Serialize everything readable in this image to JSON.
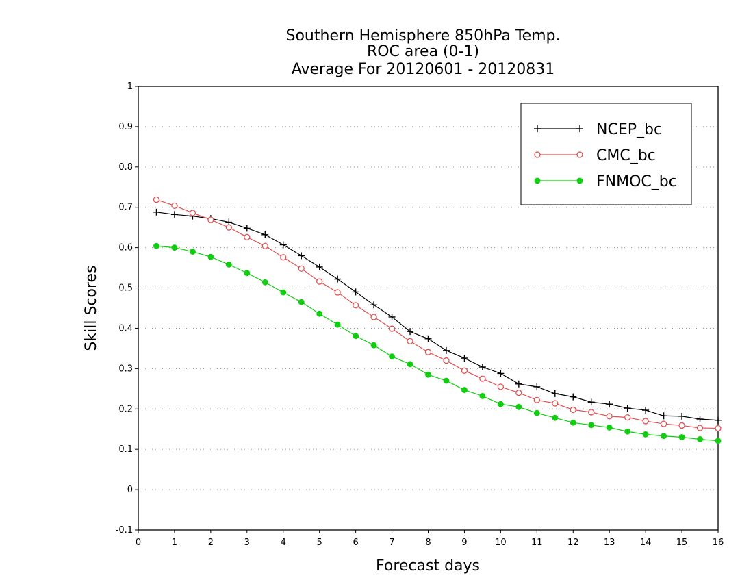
{
  "chart_data": {
    "type": "line",
    "title": "Southern Hemisphere 850hPa Temp.",
    "subtitle": "ROC area (0-1)",
    "subtitle2": "Average For 20120601 - 20120831",
    "xlabel": "Forecast days",
    "ylabel": "Skill Scores",
    "xlim": [
      0,
      16
    ],
    "ylim": [
      -0.1,
      1
    ],
    "xticks": [
      "0",
      "1",
      "2",
      "3",
      "4",
      "5",
      "6",
      "7",
      "8",
      "9",
      "10",
      "11",
      "12",
      "13",
      "14",
      "15",
      "16"
    ],
    "yticks": [
      "-0.1",
      "0",
      "0.1",
      "0.2",
      "0.3",
      "0.4",
      "0.5",
      "0.6",
      "0.7",
      "0.8",
      "0.9",
      "1"
    ],
    "grid": true,
    "legend_position": "top-right",
    "x": [
      0.5,
      1,
      1.5,
      2,
      2.5,
      3,
      3.5,
      4,
      4.5,
      5,
      5.5,
      6,
      6.5,
      7,
      7.5,
      8,
      8.5,
      9,
      9.5,
      10,
      10.5,
      11,
      11.5,
      12,
      12.5,
      13,
      13.5,
      14,
      14.5,
      15,
      15.5,
      16
    ],
    "series": [
      {
        "name": "NCEP_bc",
        "color": "#000000",
        "marker": "plus",
        "values": [
          0.688,
          0.682,
          0.678,
          0.672,
          0.663,
          0.648,
          0.632,
          0.607,
          0.58,
          0.552,
          0.522,
          0.49,
          0.458,
          0.428,
          0.392,
          0.374,
          0.345,
          0.326,
          0.304,
          0.288,
          0.262,
          0.255,
          0.238,
          0.23,
          0.217,
          0.212,
          0.202,
          0.197,
          0.183,
          0.182,
          0.175,
          0.172
        ]
      },
      {
        "name": "CMC_bc",
        "color": "#e05050",
        "marker": "open-circle",
        "values": [
          0.719,
          0.704,
          0.686,
          0.669,
          0.65,
          0.626,
          0.604,
          0.576,
          0.548,
          0.516,
          0.489,
          0.457,
          0.428,
          0.399,
          0.368,
          0.341,
          0.32,
          0.295,
          0.275,
          0.255,
          0.24,
          0.222,
          0.214,
          0.198,
          0.192,
          0.182,
          0.179,
          0.17,
          0.163,
          0.159,
          0.153,
          0.152
        ]
      },
      {
        "name": "FNMOC_bc",
        "color": "#11cc11",
        "marker": "filled-circle",
        "values": [
          0.604,
          0.6,
          0.59,
          0.577,
          0.558,
          0.537,
          0.514,
          0.489,
          0.465,
          0.436,
          0.409,
          0.381,
          0.358,
          0.33,
          0.311,
          0.285,
          0.27,
          0.247,
          0.232,
          0.212,
          0.205,
          0.19,
          0.178,
          0.166,
          0.16,
          0.154,
          0.144,
          0.137,
          0.133,
          0.13,
          0.125,
          0.121
        ]
      }
    ]
  }
}
